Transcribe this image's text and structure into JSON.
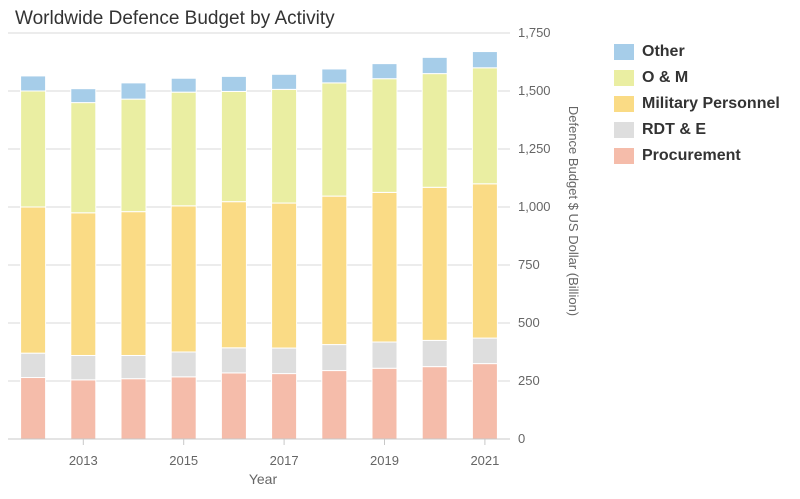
{
  "chart_data": {
    "type": "bar",
    "stacked": true,
    "title": "Worldwide Defence Budget by Activity",
    "xlabel": "Year",
    "ylabel": "Defence Budget $ US Dollar (Billion)",
    "ylim": [
      0,
      1750
    ],
    "yticks": [
      0,
      250,
      500,
      750,
      1000,
      1250,
      1500,
      1750
    ],
    "ytick_labels": [
      "0",
      "250",
      "500",
      "750",
      "1,000",
      "1,250",
      "1,500",
      "1,750"
    ],
    "y_axis_side": "right",
    "categories": [
      "2012",
      "2013",
      "2014",
      "2015",
      "2016",
      "2017",
      "2018",
      "2019",
      "2020",
      "2021"
    ],
    "xtick_labels": [
      "2013",
      "2015",
      "2017",
      "2019",
      "2021"
    ],
    "grid": true,
    "legend_position": "right",
    "series": [
      {
        "name": "Procurement",
        "color": "#f5bcaa",
        "values": [
          265,
          255,
          260,
          268,
          285,
          282,
          295,
          305,
          312,
          325
        ]
      },
      {
        "name": "RDT & E",
        "color": "#dedede",
        "values": [
          105,
          105,
          100,
          107,
          108,
          110,
          112,
          113,
          113,
          110
        ]
      },
      {
        "name": "Military Personnel",
        "color": "#fadb85",
        "values": [
          630,
          615,
          620,
          630,
          630,
          625,
          640,
          645,
          660,
          665
        ]
      },
      {
        "name": "O & M",
        "color": "#eaeea2",
        "values": [
          500,
          475,
          485,
          490,
          475,
          490,
          488,
          490,
          490,
          500
        ]
      },
      {
        "name": "Other",
        "color": "#a6cde9",
        "values": [
          65,
          60,
          70,
          60,
          65,
          65,
          60,
          65,
          70,
          70
        ]
      }
    ],
    "legend_order": [
      "Other",
      "O & M",
      "Military Personnel",
      "RDT & E",
      "Procurement"
    ]
  }
}
